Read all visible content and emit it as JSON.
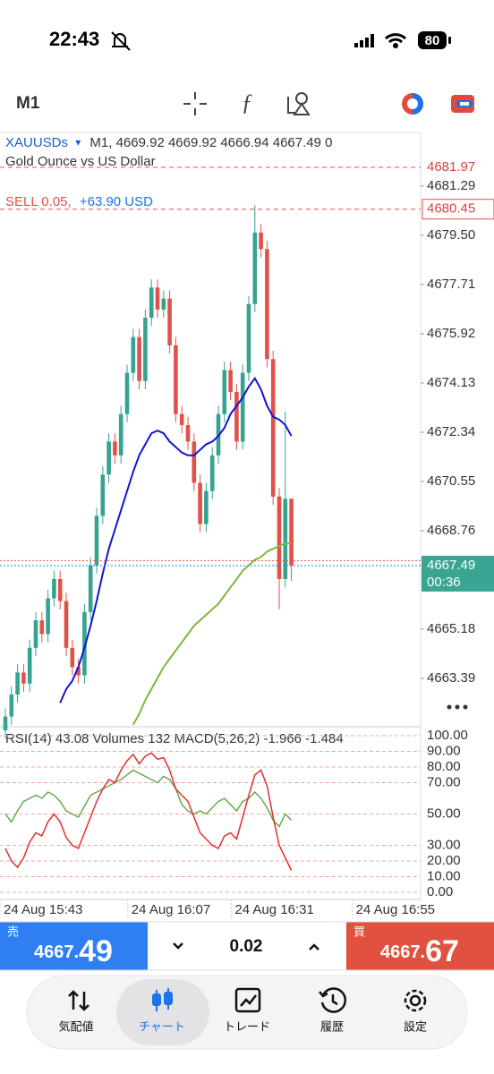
{
  "status_bar": {
    "time": "22:43",
    "battery": "80"
  },
  "toolbar": {
    "timeframe": "M1"
  },
  "chart_data": {
    "type": "candlestick",
    "symbol": "XAUUSDs",
    "symbol_menu": "▾",
    "header_values": "M1, 4669.92 4669.92 4666.94 4667.49 0",
    "subtitle": "Gold Ounce vs US Dollar",
    "position_side": "SELL 0.05,",
    "position_profit": "+63.90 USD",
    "ylim": [
      4661.63,
      4683.24
    ],
    "yticks": [
      4681.29,
      {
        "value": 4679.5,
        "label": "4679.50"
      },
      4677.71,
      4675.92,
      4674.13,
      4672.34,
      4670.55,
      4668.76,
      4665.18,
      4663.39
    ],
    "stop_level": 4681.97,
    "open_price": 4680.45,
    "ask": 4667.67,
    "bid": 4667.49,
    "countdown": "00:36",
    "categories": [
      "24 Aug 15:43",
      null,
      null,
      null,
      null,
      null,
      null,
      null,
      null,
      null,
      null,
      null,
      null,
      null,
      null,
      null,
      null,
      null,
      null,
      null,
      null,
      "24 Aug 16:07",
      null,
      null,
      null,
      null,
      null,
      null,
      null,
      null,
      null,
      null,
      null,
      null,
      null,
      null,
      null,
      null,
      "24 Aug 16:31",
      null,
      null,
      null,
      null,
      null,
      null,
      null,
      null,
      null
    ],
    "future_time_label": "24 Aug 16:55",
    "bull_color": "#35a38f",
    "bear_color": "#e0514a",
    "open": [
      4661.5,
      4662.0,
      4662.8,
      4663.6,
      4663.2,
      4664.5,
      4665.5,
      4665.0,
      4666.3,
      4667.0,
      4666.2,
      4664.5,
      4663.8,
      4663.5,
      4665.8,
      4667.5,
      4669.3,
      4670.8,
      4672.0,
      4671.5,
      4673.0,
      4674.5,
      4675.8,
      4674.2,
      4676.5,
      4677.6,
      4676.8,
      4677.2,
      4675.5,
      4673.0,
      4672.6,
      4672.0,
      4670.5,
      4669.0,
      4670.2,
      4671.5,
      4673.0,
      4674.6,
      4673.8,
      4672.0,
      4674.5,
      4677.0,
      4679.6,
      4679.0,
      4675.0,
      4670.0,
      4667.0,
      4669.92
    ],
    "high": [
      4662.3,
      4663.1,
      4663.9,
      4663.9,
      4664.8,
      4665.8,
      4665.8,
      4666.6,
      4667.3,
      4667.3,
      4666.5,
      4664.8,
      4664.1,
      4666.1,
      4667.8,
      4669.6,
      4671.1,
      4672.3,
      4672.3,
      4673.3,
      4674.8,
      4676.1,
      4676.1,
      4676.8,
      4677.9,
      4677.9,
      4677.5,
      4677.5,
      4675.8,
      4673.3,
      4672.9,
      4672.3,
      4670.8,
      4670.5,
      4671.8,
      4673.3,
      4674.9,
      4674.9,
      4674.1,
      4674.8,
      4677.3,
      4680.6,
      4679.9,
      4679.3,
      4675.3,
      4670.3,
      4673.1,
      4669.92
    ],
    "low": [
      4661.2,
      4661.7,
      4662.5,
      4662.9,
      4662.9,
      4664.2,
      4664.7,
      4664.7,
      4666.0,
      4665.9,
      4664.2,
      4663.5,
      4663.2,
      4663.2,
      4665.5,
      4667.2,
      4669.0,
      4670.5,
      4671.2,
      4671.2,
      4672.7,
      4674.2,
      4673.9,
      4673.9,
      4676.2,
      4676.5,
      4676.5,
      4675.2,
      4672.7,
      4672.3,
      4671.7,
      4670.2,
      4668.7,
      4668.7,
      4669.9,
      4671.2,
      4672.7,
      4673.5,
      4671.7,
      4671.7,
      4674.2,
      4676.7,
      4678.7,
      4674.7,
      4669.7,
      4665.9,
      4666.7,
      4666.94
    ],
    "close": [
      4662.0,
      4662.8,
      4663.6,
      4663.2,
      4664.5,
      4665.5,
      4665.0,
      4666.3,
      4667.0,
      4666.2,
      4664.5,
      4663.8,
      4663.5,
      4665.8,
      4667.5,
      4669.3,
      4670.8,
      4672.0,
      4671.5,
      4673.0,
      4674.5,
      4675.8,
      4674.2,
      4676.5,
      4677.6,
      4676.8,
      4677.2,
      4675.5,
      4673.0,
      4672.6,
      4672.0,
      4670.5,
      4669.0,
      4670.2,
      4671.5,
      4673.0,
      4674.6,
      4673.8,
      4672.0,
      4674.5,
      4677.0,
      4679.6,
      4679.0,
      4675.0,
      4670.0,
      4667.0,
      4669.92,
      4667.49
    ],
    "overlays": [
      {
        "color": "#1414d4",
        "values": [
          null,
          null,
          null,
          null,
          null,
          null,
          null,
          null,
          null,
          4662.5,
          4663.0,
          4663.3,
          4663.8,
          4664.5,
          4665.3,
          4666.2,
          4667.2,
          4668.1,
          4668.8,
          4669.5,
          4670.2,
          4670.9,
          4671.5,
          4671.9,
          4672.3,
          4672.4,
          4672.3,
          4672.0,
          4671.8,
          4671.6,
          4671.5,
          4671.5,
          4671.7,
          4671.9,
          4672.0,
          4672.2,
          4672.5,
          4673.0,
          4673.3,
          4673.6,
          4674.0,
          4674.3,
          4673.9,
          4673.3,
          4672.9,
          4672.8,
          4672.6,
          4672.2
        ]
      },
      {
        "color": "#7cb83c",
        "values": [
          null,
          null,
          null,
          null,
          null,
          null,
          null,
          null,
          null,
          null,
          null,
          null,
          null,
          null,
          null,
          null,
          null,
          null,
          null,
          null,
          null,
          4661.7,
          4662.1,
          4662.6,
          4663.0,
          4663.4,
          4663.8,
          4664.1,
          4664.4,
          4664.7,
          4665.0,
          4665.3,
          4665.5,
          4665.7,
          4665.9,
          4666.1,
          4666.4,
          4666.7,
          4667.0,
          4667.3,
          4667.5,
          4667.7,
          4667.8,
          4668.0,
          4668.1,
          4668.2,
          4668.3,
          4668.3
        ]
      }
    ],
    "indicator": {
      "header": "RSI(14) 43.08 Volumes 132 MACD(5,26,2) -1.966 -1.484",
      "ylim": [
        0,
        100
      ],
      "yticks": [
        {
          "value": 100,
          "label": "100.00"
        },
        {
          "value": 90,
          "label": "90.00"
        },
        {
          "value": 80,
          "label": "80.00"
        },
        {
          "value": 70,
          "label": "70.00"
        },
        {
          "value": 50,
          "label": "50.00"
        },
        {
          "value": 30,
          "label": "30.00"
        },
        {
          "value": 20,
          "label": "20.00"
        },
        {
          "value": 10,
          "label": "10.00"
        },
        {
          "value": 0,
          "label": "0.00"
        }
      ],
      "grid": true,
      "series": [
        {
          "color": "#6aa84f",
          "values": [
            50,
            45,
            52,
            58,
            60,
            62,
            60,
            64,
            62,
            58,
            52,
            50,
            48,
            55,
            62,
            64,
            66,
            68,
            70,
            72,
            75,
            78,
            76,
            74,
            72,
            70,
            74,
            72,
            66,
            56,
            52,
            50,
            52,
            50,
            54,
            58,
            60,
            56,
            52,
            58,
            60,
            64,
            60,
            54,
            46,
            42,
            50,
            46
          ]
        },
        {
          "color": "#e0302e",
          "values": [
            28,
            20,
            16,
            22,
            32,
            38,
            36,
            45,
            50,
            45,
            35,
            30,
            28,
            38,
            48,
            58,
            66,
            72,
            70,
            78,
            84,
            88,
            82,
            87,
            89,
            85,
            86,
            78,
            66,
            62,
            58,
            48,
            38,
            34,
            30,
            28,
            36,
            38,
            34,
            48,
            62,
            75,
            78,
            68,
            48,
            30,
            22,
            14
          ]
        }
      ]
    }
  },
  "trade_bar": {
    "sell_label": "売",
    "sell_price": [
      "4667.",
      "49"
    ],
    "lot": "0.02",
    "buy_label": "買",
    "buy_price": [
      "4667.",
      "67"
    ]
  },
  "tabs": [
    "気配値",
    "チャート",
    "トレード",
    "履歴",
    "設定"
  ]
}
